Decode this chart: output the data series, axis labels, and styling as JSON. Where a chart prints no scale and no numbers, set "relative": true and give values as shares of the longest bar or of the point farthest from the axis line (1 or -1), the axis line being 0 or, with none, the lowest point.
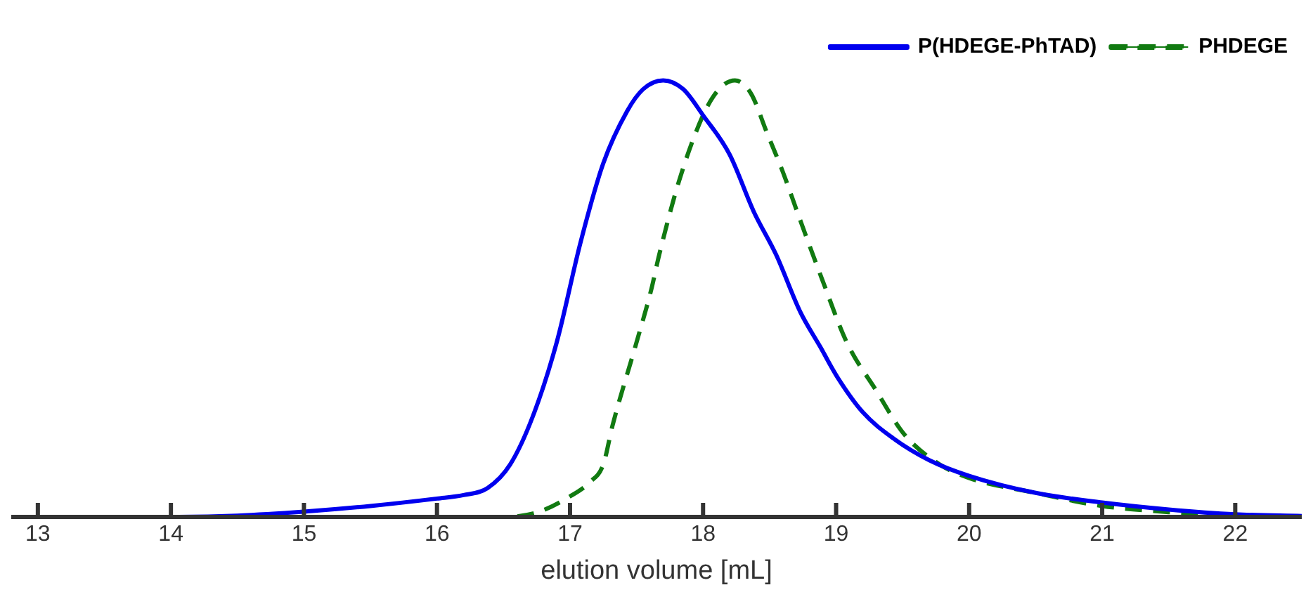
{
  "chart_data": {
    "type": "line",
    "xlabel": "elution volume [mL]",
    "xlim": [
      12.8,
      22.5
    ],
    "xticks": [
      13,
      14,
      15,
      16,
      17,
      18,
      19,
      20,
      21,
      22
    ],
    "relative": true,
    "legend": "top right",
    "marker": "none",
    "grid": false,
    "tick_labels": "x",
    "series": [
      {
        "name": "P(HDEGE-PhTAD)",
        "color": "#0000ee",
        "line_style": "solid",
        "x": [
          12.8,
          13,
          14,
          14.5,
          15,
          15.5,
          16,
          16.2,
          16.38,
          16.55,
          16.72,
          16.9,
          17.08,
          17.25,
          17.43,
          17.55,
          17.7,
          17.85,
          18,
          18.2,
          18.38,
          18.55,
          18.73,
          18.88,
          19.01,
          19.2,
          19.43,
          19.7,
          20,
          20.5,
          21,
          21.5,
          22,
          22.5
        ],
        "values": [
          0,
          0,
          0,
          0.003,
          0.012,
          0.025,
          0.042,
          0.05,
          0.066,
          0.12,
          0.23,
          0.4,
          0.63,
          0.81,
          0.93,
          0.98,
          1,
          0.98,
          0.92,
          0.83,
          0.7,
          0.6,
          0.47,
          0.39,
          0.32,
          0.24,
          0.18,
          0.13,
          0.094,
          0.055,
          0.033,
          0.017,
          0.006,
          0.002
        ]
      },
      {
        "name": "PHDEGE",
        "color": "#117a11",
        "line_style": "dashed",
        "x": [
          12.8,
          16,
          16.5,
          16.75,
          17,
          17.15,
          17.25,
          17.32,
          17.5,
          17.61,
          17.67,
          17.82,
          18,
          18.12,
          18.24,
          18.36,
          18.48,
          18.6,
          18.73,
          18.9,
          19.08,
          19.3,
          19.51,
          19.78,
          20,
          20.5,
          21,
          21.5,
          22
        ],
        "values": [
          0,
          0,
          0,
          0.01,
          0.047,
          0.08,
          0.12,
          0.21,
          0.4,
          0.52,
          0.6,
          0.77,
          0.92,
          0.98,
          1,
          0.97,
          0.88,
          0.79,
          0.68,
          0.54,
          0.4,
          0.29,
          0.19,
          0.12,
          0.089,
          0.055,
          0.025,
          0.011,
          0
        ]
      }
    ]
  }
}
